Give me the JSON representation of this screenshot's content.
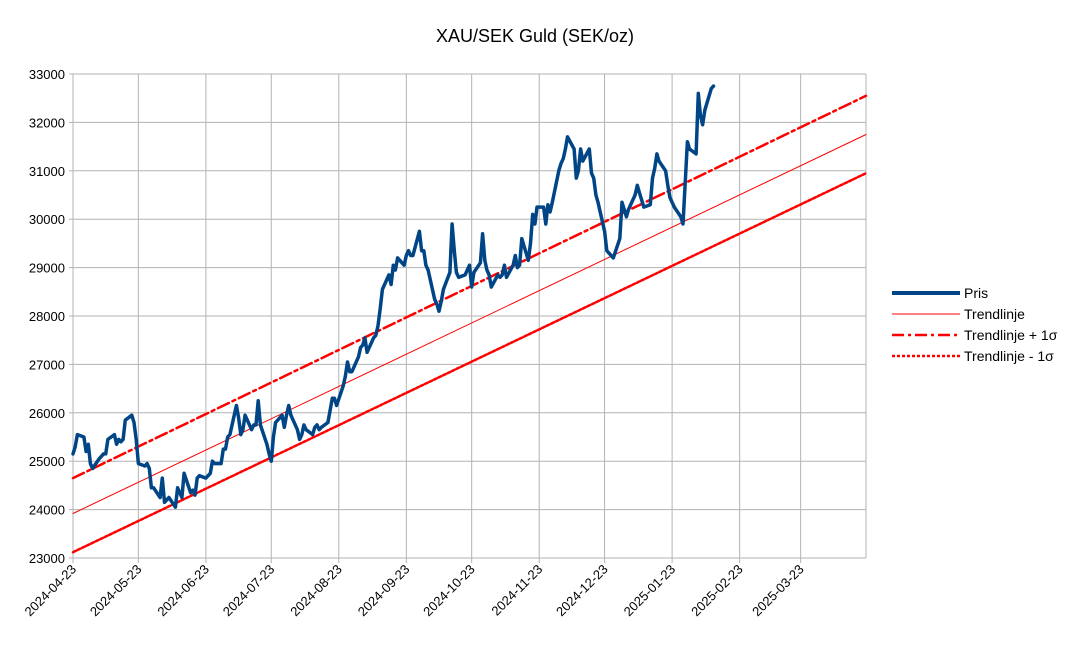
{
  "chart_data": {
    "type": "line",
    "title": "XAU/SEK Guld (SEK/oz)",
    "xlabel": "",
    "ylabel": "",
    "ylim": [
      23000,
      33000
    ],
    "y_ticks": [
      23000,
      24000,
      25000,
      26000,
      27000,
      28000,
      29000,
      30000,
      31000,
      32000,
      33000
    ],
    "x_range": [
      "2024-04-23",
      "2025-04-22"
    ],
    "x_ticks": [
      "2024-04-23",
      "2024-05-23",
      "2024-06-23",
      "2024-07-23",
      "2024-08-23",
      "2024-09-23",
      "2024-10-23",
      "2024-11-23",
      "2024-12-23",
      "2025-01-23",
      "2025-02-23",
      "2025-03-23"
    ],
    "grid": true,
    "legend_position": "right",
    "series": [
      {
        "name": "Pris",
        "color": "#004586",
        "style": "solid-thick",
        "points": [
          [
            "2024-04-23",
            25150
          ],
          [
            "2024-04-24",
            25300
          ],
          [
            "2024-04-25",
            25550
          ],
          [
            "2024-04-28",
            25500
          ],
          [
            "2024-04-29",
            25200
          ],
          [
            "2024-04-30",
            25350
          ],
          [
            "2024-05-01",
            24950
          ],
          [
            "2024-05-02",
            24850
          ],
          [
            "2024-05-05",
            25050
          ],
          [
            "2024-05-06",
            25100
          ],
          [
            "2024-05-07",
            25150
          ],
          [
            "2024-05-08",
            25150
          ],
          [
            "2024-05-09",
            25450
          ],
          [
            "2024-05-12",
            25550
          ],
          [
            "2024-05-13",
            25350
          ],
          [
            "2024-05-14",
            25450
          ],
          [
            "2024-05-15",
            25400
          ],
          [
            "2024-05-16",
            25450
          ],
          [
            "2024-05-17",
            25850
          ],
          [
            "2024-05-20",
            25950
          ],
          [
            "2024-05-21",
            25800
          ],
          [
            "2024-05-22",
            25450
          ],
          [
            "2024-05-23",
            24950
          ],
          [
            "2024-05-26",
            24900
          ],
          [
            "2024-05-27",
            24950
          ],
          [
            "2024-05-28",
            24850
          ],
          [
            "2024-05-29",
            24450
          ],
          [
            "2024-05-30",
            24450
          ],
          [
            "2024-06-02",
            24250
          ],
          [
            "2024-06-03",
            24650
          ],
          [
            "2024-06-04",
            24150
          ],
          [
            "2024-06-05",
            24200
          ],
          [
            "2024-06-06",
            24250
          ],
          [
            "2024-06-09",
            24050
          ],
          [
            "2024-06-10",
            24450
          ],
          [
            "2024-06-11",
            24350
          ],
          [
            "2024-06-12",
            24250
          ],
          [
            "2024-06-13",
            24750
          ],
          [
            "2024-06-16",
            24350
          ],
          [
            "2024-06-17",
            24400
          ],
          [
            "2024-06-18",
            24300
          ],
          [
            "2024-06-19",
            24650
          ],
          [
            "2024-06-20",
            24700
          ],
          [
            "2024-06-23",
            24650
          ],
          [
            "2024-06-24",
            24700
          ],
          [
            "2024-06-25",
            24750
          ],
          [
            "2024-06-26",
            25000
          ],
          [
            "2024-06-27",
            24950
          ],
          [
            "2024-06-30",
            24950
          ],
          [
            "2024-07-01",
            25250
          ],
          [
            "2024-07-02",
            25250
          ],
          [
            "2024-07-03",
            25500
          ],
          [
            "2024-07-04",
            25550
          ],
          [
            "2024-07-07",
            26150
          ],
          [
            "2024-07-08",
            25900
          ],
          [
            "2024-07-09",
            25550
          ],
          [
            "2024-07-10",
            25650
          ],
          [
            "2024-07-11",
            25950
          ],
          [
            "2024-07-14",
            25650
          ],
          [
            "2024-07-15",
            25750
          ],
          [
            "2024-07-16",
            25750
          ],
          [
            "2024-07-17",
            26250
          ],
          [
            "2024-07-18",
            25750
          ],
          [
            "2024-07-21",
            25350
          ],
          [
            "2024-07-22",
            25150
          ],
          [
            "2024-07-23",
            25000
          ],
          [
            "2024-07-24",
            25500
          ],
          [
            "2024-07-25",
            25800
          ],
          [
            "2024-07-28",
            25950
          ],
          [
            "2024-07-29",
            25700
          ],
          [
            "2024-07-30",
            25950
          ],
          [
            "2024-07-31",
            26150
          ],
          [
            "2024-08-01",
            25950
          ],
          [
            "2024-08-04",
            25650
          ],
          [
            "2024-08-05",
            25450
          ],
          [
            "2024-08-06",
            25550
          ],
          [
            "2024-08-07",
            25750
          ],
          [
            "2024-08-08",
            25650
          ],
          [
            "2024-08-11",
            25550
          ],
          [
            "2024-08-12",
            25700
          ],
          [
            "2024-08-13",
            25750
          ],
          [
            "2024-08-14",
            25650
          ],
          [
            "2024-08-15",
            25700
          ],
          [
            "2024-08-18",
            25800
          ],
          [
            "2024-08-19",
            26050
          ],
          [
            "2024-08-20",
            26300
          ],
          [
            "2024-08-21",
            26300
          ],
          [
            "2024-08-22",
            26150
          ],
          [
            "2024-08-25",
            26550
          ],
          [
            "2024-08-26",
            26750
          ],
          [
            "2024-08-27",
            27050
          ],
          [
            "2024-08-28",
            26850
          ],
          [
            "2024-08-29",
            26850
          ],
          [
            "2024-09-01",
            27150
          ],
          [
            "2024-09-02",
            27350
          ],
          [
            "2024-09-03",
            27400
          ],
          [
            "2024-09-04",
            27550
          ],
          [
            "2024-09-05",
            27250
          ],
          [
            "2024-09-08",
            27550
          ],
          [
            "2024-09-09",
            27600
          ],
          [
            "2024-09-10",
            27800
          ],
          [
            "2024-09-11",
            28150
          ],
          [
            "2024-09-12",
            28550
          ],
          [
            "2024-09-15",
            28850
          ],
          [
            "2024-09-16",
            28650
          ],
          [
            "2024-09-17",
            29050
          ],
          [
            "2024-09-18",
            28950
          ],
          [
            "2024-09-19",
            29200
          ],
          [
            "2024-09-22",
            29050
          ],
          [
            "2024-09-23",
            29250
          ],
          [
            "2024-09-24",
            29350
          ],
          [
            "2024-09-25",
            29250
          ],
          [
            "2024-09-26",
            29250
          ],
          [
            "2024-09-29",
            29750
          ],
          [
            "2024-09-30",
            29350
          ],
          [
            "2024-10-01",
            29350
          ],
          [
            "2024-10-02",
            29050
          ],
          [
            "2024-10-03",
            28950
          ],
          [
            "2024-10-06",
            28350
          ],
          [
            "2024-10-07",
            28250
          ],
          [
            "2024-10-08",
            28100
          ],
          [
            "2024-10-09",
            28300
          ],
          [
            "2024-10-10",
            28550
          ],
          [
            "2024-10-13",
            28900
          ],
          [
            "2024-10-14",
            29900
          ],
          [
            "2024-10-15",
            29350
          ],
          [
            "2024-10-16",
            28900
          ],
          [
            "2024-10-17",
            28800
          ],
          [
            "2024-10-20",
            28850
          ],
          [
            "2024-10-21",
            28950
          ],
          [
            "2024-10-22",
            29050
          ],
          [
            "2024-10-23",
            28600
          ],
          [
            "2024-10-24",
            28900
          ],
          [
            "2024-10-27",
            29100
          ],
          [
            "2024-10-28",
            29700
          ],
          [
            "2024-10-29",
            29150
          ],
          [
            "2024-10-30",
            28950
          ],
          [
            "2024-10-31",
            28850
          ],
          [
            "2024-11-01",
            28600
          ],
          [
            "2024-11-04",
            28850
          ],
          [
            "2024-11-05",
            28800
          ],
          [
            "2024-11-06",
            28850
          ],
          [
            "2024-11-07",
            29050
          ],
          [
            "2024-11-08",
            28800
          ],
          [
            "2024-11-11",
            29050
          ],
          [
            "2024-11-12",
            29250
          ],
          [
            "2024-11-13",
            29000
          ],
          [
            "2024-11-14",
            29050
          ],
          [
            "2024-11-15",
            29600
          ],
          [
            "2024-11-18",
            29150
          ],
          [
            "2024-11-19",
            29500
          ],
          [
            "2024-11-20",
            30100
          ],
          [
            "2024-11-21",
            29900
          ],
          [
            "2024-11-22",
            30250
          ],
          [
            "2024-11-25",
            30250
          ],
          [
            "2024-11-26",
            29900
          ],
          [
            "2024-11-27",
            30300
          ],
          [
            "2024-11-28",
            30150
          ],
          [
            "2024-11-29",
            30350
          ],
          [
            "2024-12-02",
            31000
          ],
          [
            "2024-12-03",
            31150
          ],
          [
            "2024-12-04",
            31250
          ],
          [
            "2024-12-05",
            31450
          ],
          [
            "2024-12-06",
            31700
          ],
          [
            "2024-12-09",
            31450
          ],
          [
            "2024-12-10",
            30850
          ],
          [
            "2024-12-11",
            31000
          ],
          [
            "2024-12-12",
            31450
          ],
          [
            "2024-12-13",
            31200
          ],
          [
            "2024-12-16",
            31450
          ],
          [
            "2024-12-17",
            30950
          ],
          [
            "2024-12-18",
            30850
          ],
          [
            "2024-12-19",
            30500
          ],
          [
            "2024-12-20",
            30350
          ],
          [
            "2024-12-23",
            29750
          ],
          [
            "2024-12-24",
            29350
          ],
          [
            "2024-12-27",
            29200
          ],
          [
            "2024-12-30",
            29600
          ],
          [
            "2024-12-31",
            30350
          ],
          [
            "2025-01-02",
            30050
          ],
          [
            "2025-01-03",
            30200
          ],
          [
            "2025-01-06",
            30500
          ],
          [
            "2025-01-07",
            30700
          ],
          [
            "2025-01-08",
            30550
          ],
          [
            "2025-01-09",
            30400
          ],
          [
            "2025-01-10",
            30250
          ],
          [
            "2025-01-13",
            30300
          ],
          [
            "2025-01-14",
            30850
          ],
          [
            "2025-01-15",
            31050
          ],
          [
            "2025-01-16",
            31350
          ],
          [
            "2025-01-17",
            31200
          ],
          [
            "2025-01-20",
            31000
          ],
          [
            "2025-01-21",
            30700
          ],
          [
            "2025-01-22",
            30450
          ],
          [
            "2025-01-23",
            30350
          ],
          [
            "2025-01-24",
            30250
          ],
          [
            "2025-01-27",
            30050
          ],
          [
            "2025-01-28",
            29900
          ],
          [
            "2025-01-29",
            30750
          ],
          [
            "2025-01-30",
            31600
          ],
          [
            "2025-01-31",
            31450
          ],
          [
            "2025-02-03",
            31350
          ],
          [
            "2025-02-04",
            32600
          ],
          [
            "2025-02-05",
            32150
          ],
          [
            "2025-02-06",
            31950
          ],
          [
            "2025-02-07",
            32250
          ],
          [
            "2025-02-10",
            32700
          ],
          [
            "2025-02-11",
            32750
          ]
        ]
      },
      {
        "name": "Trendlinje",
        "color": "#ff0000",
        "style": "solid-thin",
        "points": [
          [
            "2024-04-23",
            23920
          ],
          [
            "2025-04-22",
            31750
          ]
        ]
      },
      {
        "name": "Trendlinje + 1σ",
        "color": "#ff0000",
        "style": "dash-dot",
        "points": [
          [
            "2024-04-23",
            24650
          ],
          [
            "2025-04-22",
            32550
          ]
        ]
      },
      {
        "name": "Trendlinje - 1σ",
        "color": "#ff0000",
        "style": "dotted",
        "points": [
          [
            "2024-04-23",
            23120
          ],
          [
            "2025-04-22",
            30950
          ]
        ]
      }
    ]
  }
}
